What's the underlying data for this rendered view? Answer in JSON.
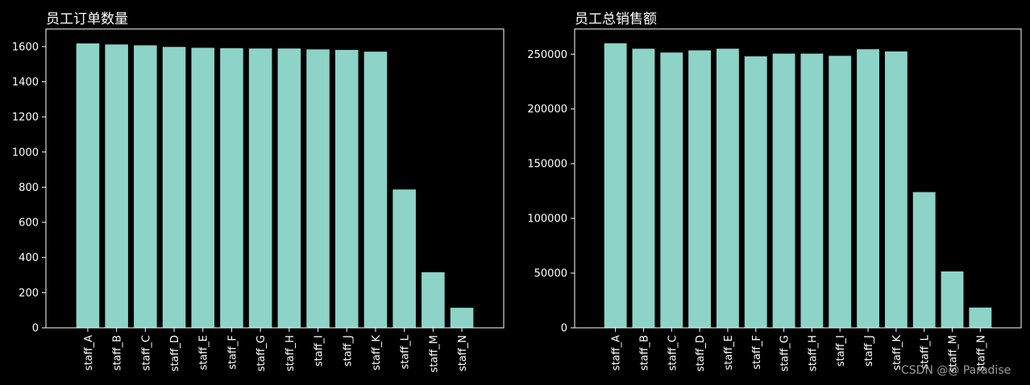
{
  "chart_data": [
    {
      "type": "bar",
      "title": "员工订单数量",
      "xlabel": "",
      "ylabel": "",
      "categories": [
        "staff_A",
        "staff_B",
        "staff_C",
        "staff_D",
        "staff_E",
        "staff_F",
        "staff_G",
        "staff_H",
        "staff_I",
        "staff_J",
        "staff_K",
        "staff_L",
        "staff_M",
        "staff_N"
      ],
      "values": [
        1618,
        1612,
        1607,
        1598,
        1593,
        1591,
        1589,
        1589,
        1584,
        1581,
        1571,
        787,
        316,
        114
      ],
      "ylim": [
        0,
        1700
      ],
      "yticks": [
        0,
        200,
        400,
        600,
        800,
        1000,
        1200,
        1400,
        1600
      ],
      "grid": false,
      "bar_color": "#8dd3c7"
    },
    {
      "type": "bar",
      "title": "员工总销售额",
      "xlabel": "",
      "ylabel": "",
      "categories": [
        "staff_A",
        "staff_B",
        "staff_C",
        "staff_D",
        "staff_E",
        "staff_F",
        "staff_G",
        "staff_H",
        "staff_I",
        "staff_J",
        "staff_K",
        "staff_L",
        "staff_M",
        "staff_N"
      ],
      "values": [
        260000,
        255000,
        251500,
        253500,
        255000,
        248000,
        250500,
        250500,
        248500,
        254500,
        252500,
        124000,
        51500,
        18500
      ],
      "ylim": [
        0,
        273000
      ],
      "yticks": [
        0,
        50000,
        100000,
        150000,
        200000,
        250000
      ],
      "grid": false,
      "bar_color": "#8dd3c7"
    }
  ],
  "theme": {
    "background": "#000000",
    "axis_color": "#ffffff",
    "text_color": "#ffffff"
  },
  "watermark": "CSDN @@ Paradise"
}
